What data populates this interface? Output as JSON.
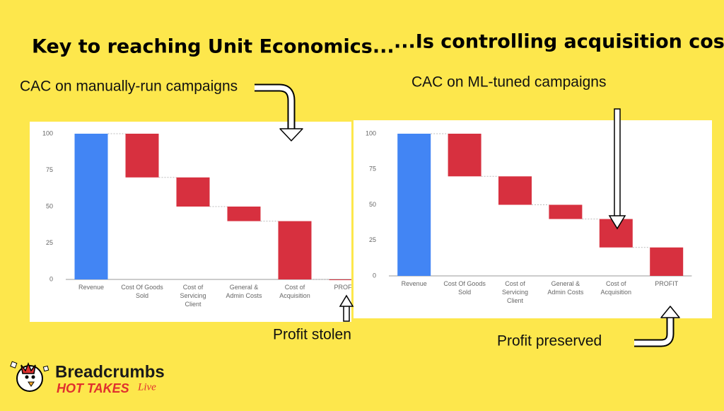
{
  "slide": {
    "title_left": "Key to reaching Unit Economics...",
    "title_right": "...Is controlling acquisition cost",
    "note_manual": "CAC on manually-run campaigns",
    "note_ml": "CAC on ML-tuned campaigns",
    "note_stolen": "Profit stolen",
    "note_preserved": "Profit preserved",
    "brand": "Breadcrumbs",
    "brand_sub": "HOT TAKES",
    "brand_live": "Live"
  },
  "chart_data": [
    {
      "type": "waterfall",
      "categories": [
        "Revenue",
        "Cost Of Goods Sold",
        "Cost of Servicing Client",
        "General & Admin Costs",
        "Cost of Acquisition",
        "PROFIT"
      ],
      "values": [
        100,
        -30,
        -20,
        -10,
        -40,
        0
      ],
      "totals": [
        true,
        false,
        false,
        false,
        false,
        true
      ],
      "colors": [
        "#4285f4",
        "#d7303f",
        "#d7303f",
        "#d7303f",
        "#d7303f",
        "#d7303f"
      ],
      "ylim": [
        0,
        100
      ],
      "yticks": [
        0,
        25,
        50,
        75,
        100
      ],
      "grid": false
    },
    {
      "type": "waterfall",
      "categories": [
        "Revenue",
        "Cost Of Goods Sold",
        "Cost of Servicing Client",
        "General & Admin Costs",
        "Cost of Acquisition",
        "PROFIT"
      ],
      "values": [
        100,
        -30,
        -20,
        -10,
        -20,
        20
      ],
      "totals": [
        true,
        false,
        false,
        false,
        false,
        true
      ],
      "colors": [
        "#4285f4",
        "#d7303f",
        "#d7303f",
        "#d7303f",
        "#d7303f",
        "#d7303f"
      ],
      "ylim": [
        0,
        100
      ],
      "yticks": [
        0,
        25,
        50,
        75,
        100
      ],
      "grid": false
    }
  ]
}
